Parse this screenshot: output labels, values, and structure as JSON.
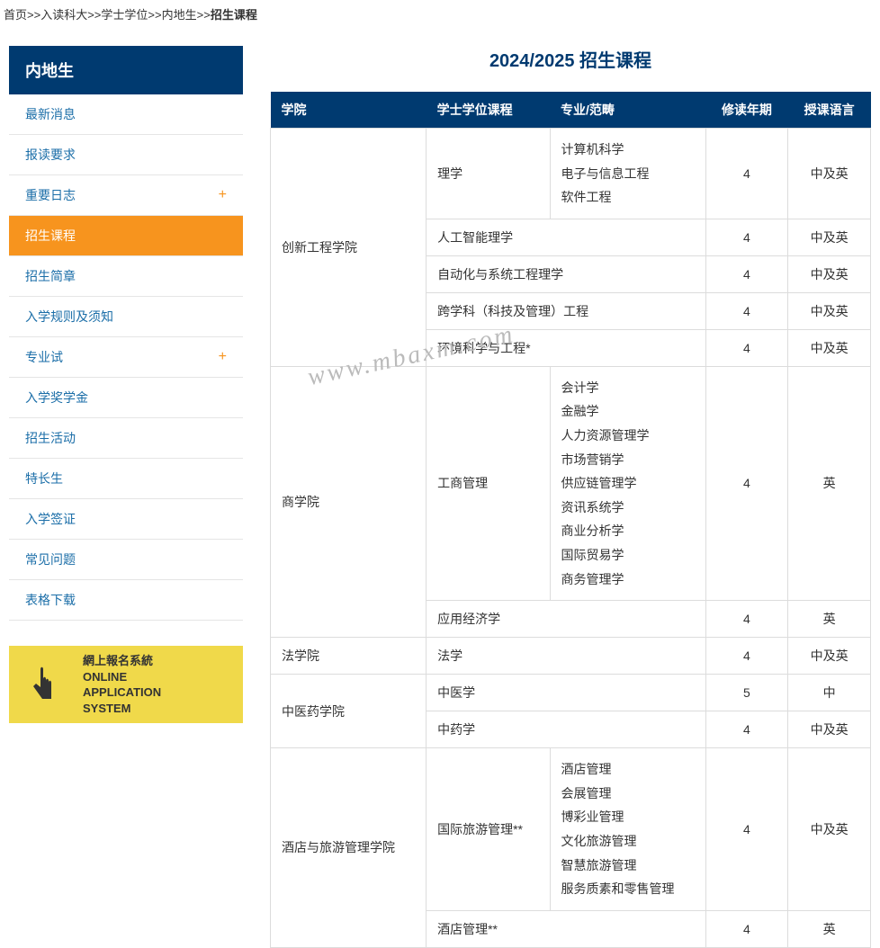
{
  "breadcrumb": {
    "items": [
      "首页",
      "入读科大",
      "学士学位",
      "内地生"
    ],
    "current": "招生课程",
    "sep": ">>"
  },
  "sidebar": {
    "title": "内地生",
    "items": [
      {
        "label": "最新消息",
        "expandable": false,
        "active": false
      },
      {
        "label": "报读要求",
        "expandable": false,
        "active": false
      },
      {
        "label": "重要日志",
        "expandable": true,
        "active": false
      },
      {
        "label": "招生课程",
        "expandable": false,
        "active": true
      },
      {
        "label": "招生简章",
        "expandable": false,
        "active": false
      },
      {
        "label": "入学规则及须知",
        "expandable": false,
        "active": false
      },
      {
        "label": "专业试",
        "expandable": true,
        "active": false
      },
      {
        "label": "入学奖学金",
        "expandable": false,
        "active": false
      },
      {
        "label": "招生活动",
        "expandable": false,
        "active": false
      },
      {
        "label": "特长生",
        "expandable": false,
        "active": false
      },
      {
        "label": "入学签证",
        "expandable": false,
        "active": false
      },
      {
        "label": "常见问题",
        "expandable": false,
        "active": false
      },
      {
        "label": "表格下载",
        "expandable": false,
        "active": false
      }
    ],
    "banner": {
      "line1": "網上報名系統",
      "line2": "ONLINE",
      "line3": "APPLICATION",
      "line4": "SYSTEM"
    }
  },
  "page": {
    "title": "2024/2025 招生课程"
  },
  "table": {
    "headers": {
      "faculty": "学院",
      "program": "学士学位课程",
      "major": "专业/范畴",
      "years": "修读年期",
      "lang": "授课语言"
    },
    "rows": [
      {
        "faculty": "创新工程学院",
        "facultyRowspan": 5,
        "program": "理学",
        "major": "计算机科学\n电子与信息工程\n软件工程",
        "years": "4",
        "lang": "中及英"
      },
      {
        "program": "人工智能理学",
        "major": "",
        "years": "4",
        "lang": "中及英"
      },
      {
        "program": "自动化与系统工程理学",
        "major": "",
        "years": "4",
        "lang": "中及英"
      },
      {
        "program": "跨学科（科技及管理）工程",
        "major": "",
        "years": "4",
        "lang": "中及英"
      },
      {
        "program": "环境科学与工程*",
        "major": "",
        "years": "4",
        "lang": "中及英"
      },
      {
        "faculty": "商学院",
        "facultyRowspan": 2,
        "program": "工商管理",
        "major": "会计学\n金融学\n人力资源管理学\n市场营销学\n供应链管理学\n资讯系统学\n商业分析学\n国际贸易学\n商务管理学",
        "years": "4",
        "lang": "英"
      },
      {
        "program": "应用经济学",
        "major": "",
        "years": "4",
        "lang": "英"
      },
      {
        "faculty": "法学院",
        "facultyRowspan": 1,
        "program": "法学",
        "major": "",
        "years": "4",
        "lang": "中及英"
      },
      {
        "faculty": "中医药学院",
        "facultyRowspan": 2,
        "program": "中医学",
        "major": "",
        "years": "5",
        "lang": "中"
      },
      {
        "program": "中药学",
        "major": "",
        "years": "4",
        "lang": "中及英"
      },
      {
        "faculty": "酒店与旅游管理学院",
        "facultyRowspan": 2,
        "program": "国际旅游管理**",
        "major": "酒店管理\n会展管理\n博彩业管理\n文化旅游管理\n智慧旅游管理\n服务质素和零售管理",
        "years": "4",
        "lang": "中及英"
      },
      {
        "program": "酒店管理**",
        "major": "",
        "years": "4",
        "lang": "英"
      }
    ]
  },
  "watermark": "www.mbaxm.com",
  "colors": {
    "navy": "#003a70",
    "orange": "#f7941e",
    "link": "#1b6ea8",
    "bannerBg": "#f0d94a",
    "border": "#dcdcdc"
  }
}
